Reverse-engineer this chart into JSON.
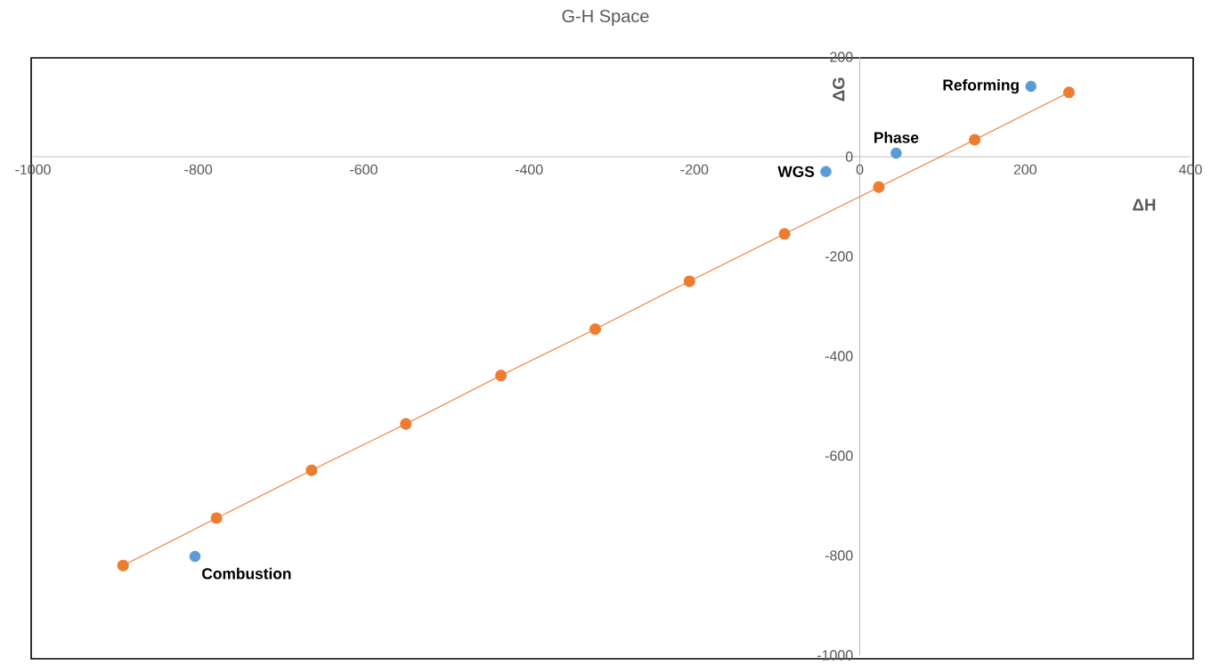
{
  "chart_data": {
    "type": "scatter",
    "title": "G-H Space",
    "xlabel": "ΔH",
    "ylabel": "ΔG",
    "xlim": [
      -1000,
      400
    ],
    "ylim": [
      -1000,
      200
    ],
    "xticks": [
      -1000,
      -800,
      -600,
      -400,
      -200,
      0,
      200,
      400
    ],
    "yticks": [
      -1000,
      -800,
      -600,
      -400,
      -200,
      0,
      200
    ],
    "marker": "circle",
    "grid": false,
    "series": [
      {
        "color": "#5b9bd5",
        "x": [
          207,
          44,
          -41,
          -804
        ],
        "values": [
          141,
          7,
          -30,
          -802
        ]
      },
      {
        "type": "line",
        "color": "#ed7d31",
        "x": [
          -891,
          -778,
          -663,
          -549,
          -434,
          -320,
          -206,
          -91,
          23,
          139,
          253
        ],
        "values": [
          -820,
          -725,
          -629,
          -536,
          -439,
          -346,
          -250,
          -155,
          -61,
          34,
          129
        ]
      }
    ],
    "annotations": [
      {
        "text": "Reforming",
        "x": 207,
        "y": 141
      },
      {
        "text": "Phase",
        "x": 44,
        "y": 7
      },
      {
        "text": "WGS",
        "x": -41,
        "y": -30
      },
      {
        "text": "Combustion",
        "x": -804,
        "y": -802
      }
    ]
  }
}
